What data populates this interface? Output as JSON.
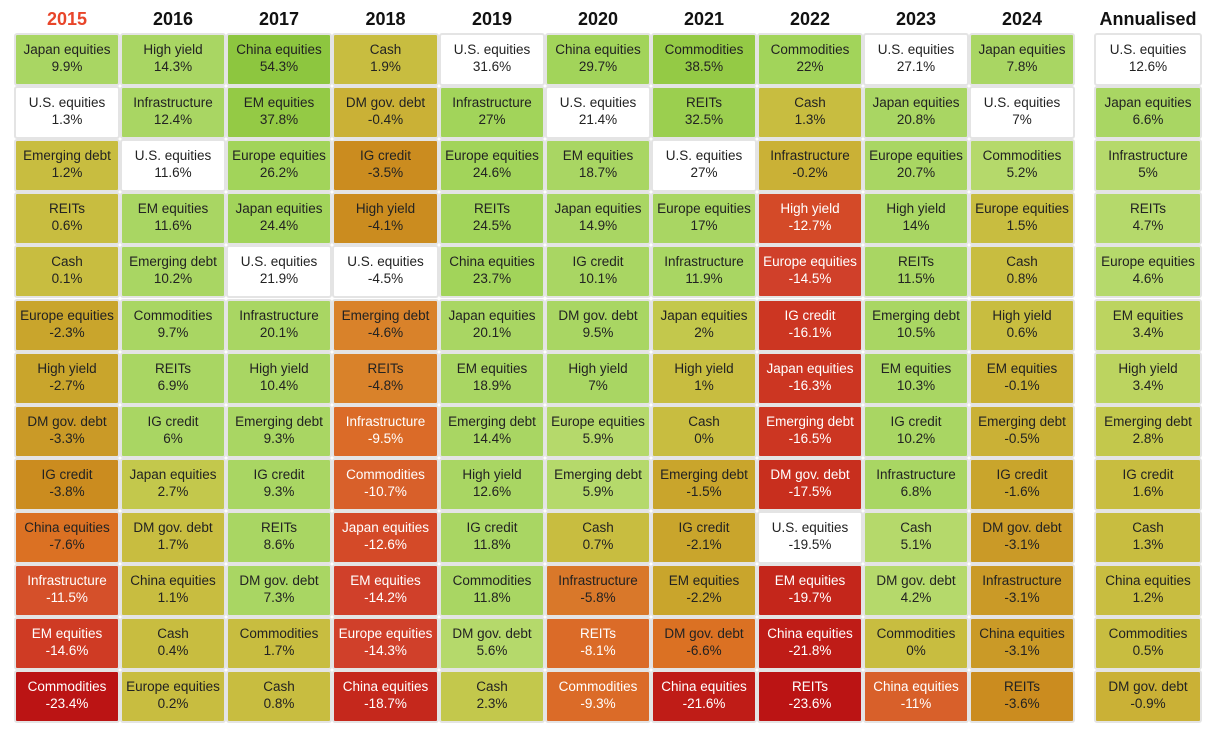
{
  "columns": [
    {
      "year": "2015",
      "active": true,
      "cells": [
        {
          "asset": "Japan equities",
          "value": "9.9%",
          "color": "#a9d663"
        },
        {
          "asset": "U.S. equities",
          "value": "1.3%",
          "color": "#ffffff"
        },
        {
          "asset": "Emerging debt",
          "value": "1.2%",
          "color": "#c8bd40"
        },
        {
          "asset": "REITs",
          "value": "0.6%",
          "color": "#c8bd40"
        },
        {
          "asset": "Cash",
          "value": "0.1%",
          "color": "#c8bd40"
        },
        {
          "asset": "Europe equities",
          "value": "-2.3%",
          "color": "#c9a52c"
        },
        {
          "asset": "High yield",
          "value": "-2.7%",
          "color": "#c9a52c"
        },
        {
          "asset": "DM gov. debt",
          "value": "-3.3%",
          "color": "#ca9a27"
        },
        {
          "asset": "IG credit",
          "value": "-3.8%",
          "color": "#cb8c1f"
        },
        {
          "asset": "China equities",
          "value": "-7.6%",
          "color": "#db7123"
        },
        {
          "asset": "Infrastructure",
          "value": "-11.5%",
          "color": "#d5502a"
        },
        {
          "asset": "EM equities",
          "value": "-14.6%",
          "color": "#cf3b24"
        },
        {
          "asset": "Commodities",
          "value": "-23.4%",
          "color": "#bb1414"
        }
      ]
    },
    {
      "year": "2016",
      "active": false,
      "cells": [
        {
          "asset": "High yield",
          "value": "14.3%",
          "color": "#a9d663"
        },
        {
          "asset": "Infrastructure",
          "value": "12.4%",
          "color": "#a9d663"
        },
        {
          "asset": "U.S. equities",
          "value": "11.6%",
          "color": "#ffffff"
        },
        {
          "asset": "EM equities",
          "value": "11.6%",
          "color": "#a9d663"
        },
        {
          "asset": "Emerging debt",
          "value": "10.2%",
          "color": "#a9d663"
        },
        {
          "asset": "Commodities",
          "value": "9.7%",
          "color": "#a9d663"
        },
        {
          "asset": "REITs",
          "value": "6.9%",
          "color": "#a9d663"
        },
        {
          "asset": "IG credit",
          "value": "6%",
          "color": "#a9d663"
        },
        {
          "asset": "Japan equities",
          "value": "2.7%",
          "color": "#c3c84c"
        },
        {
          "asset": "DM gov. debt",
          "value": "1.7%",
          "color": "#c8bd40"
        },
        {
          "asset": "China equities",
          "value": "1.1%",
          "color": "#c8bd40"
        },
        {
          "asset": "Cash",
          "value": "0.4%",
          "color": "#c8bd40"
        },
        {
          "asset": "Europe equities",
          "value": "0.2%",
          "color": "#c8bd40"
        }
      ]
    },
    {
      "year": "2017",
      "active": false,
      "cells": [
        {
          "asset": "China equities",
          "value": "54.3%",
          "color": "#8dc63f"
        },
        {
          "asset": "EM equities",
          "value": "37.8%",
          "color": "#94ca45"
        },
        {
          "asset": "Europe equities",
          "value": "26.2%",
          "color": "#a2d45a"
        },
        {
          "asset": "Japan equities",
          "value": "24.4%",
          "color": "#a2d45a"
        },
        {
          "asset": "U.S. equities",
          "value": "21.9%",
          "color": "#ffffff"
        },
        {
          "asset": "Infrastructure",
          "value": "20.1%",
          "color": "#a9d663"
        },
        {
          "asset": "High yield",
          "value": "10.4%",
          "color": "#a9d663"
        },
        {
          "asset": "Emerging debt",
          "value": "9.3%",
          "color": "#a9d663"
        },
        {
          "asset": "IG credit",
          "value": "9.3%",
          "color": "#a9d663"
        },
        {
          "asset": "REITs",
          "value": "8.6%",
          "color": "#a9d663"
        },
        {
          "asset": "DM gov. debt",
          "value": "7.3%",
          "color": "#a9d663"
        },
        {
          "asset": "Commodities",
          "value": "1.7%",
          "color": "#c8bd40"
        },
        {
          "asset": "Cash",
          "value": "0.8%",
          "color": "#c8bd40"
        }
      ]
    },
    {
      "year": "2018",
      "active": false,
      "cells": [
        {
          "asset": "Cash",
          "value": "1.9%",
          "color": "#c8bd40"
        },
        {
          "asset": "DM gov. debt",
          "value": "-0.4%",
          "color": "#cab136"
        },
        {
          "asset": "IG credit",
          "value": "-3.5%",
          "color": "#cb8c1f"
        },
        {
          "asset": "High yield",
          "value": "-4.1%",
          "color": "#cb8c1f"
        },
        {
          "asset": "U.S. equities",
          "value": "-4.5%",
          "color": "#ffffff"
        },
        {
          "asset": "Emerging debt",
          "value": "-4.6%",
          "color": "#d9822a"
        },
        {
          "asset": "REITs",
          "value": "-4.8%",
          "color": "#d9822a"
        },
        {
          "asset": "Infrastructure",
          "value": "-9.5%",
          "color": "#db6b28"
        },
        {
          "asset": "Commodities",
          "value": "-10.7%",
          "color": "#d8602a"
        },
        {
          "asset": "Japan equities",
          "value": "-12.6%",
          "color": "#d44a28"
        },
        {
          "asset": "EM equities",
          "value": "-14.2%",
          "color": "#d0402a"
        },
        {
          "asset": "Europe equities",
          "value": "-14.3%",
          "color": "#d0402a"
        },
        {
          "asset": "China equities",
          "value": "-18.7%",
          "color": "#c5281c"
        }
      ]
    },
    {
      "year": "2019",
      "active": false,
      "cells": [
        {
          "asset": "U.S. equities",
          "value": "31.6%",
          "color": "#ffffff"
        },
        {
          "asset": "Infrastructure",
          "value": "27%",
          "color": "#a2d45a"
        },
        {
          "asset": "Europe equities",
          "value": "24.6%",
          "color": "#a2d45a"
        },
        {
          "asset": "REITs",
          "value": "24.5%",
          "color": "#a2d45a"
        },
        {
          "asset": "China equities",
          "value": "23.7%",
          "color": "#a2d45a"
        },
        {
          "asset": "Japan equities",
          "value": "20.1%",
          "color": "#a9d663"
        },
        {
          "asset": "EM equities",
          "value": "18.9%",
          "color": "#a9d663"
        },
        {
          "asset": "Emerging debt",
          "value": "14.4%",
          "color": "#a9d663"
        },
        {
          "asset": "High yield",
          "value": "12.6%",
          "color": "#a9d663"
        },
        {
          "asset": "IG credit",
          "value": "11.8%",
          "color": "#a9d663"
        },
        {
          "asset": "Commodities",
          "value": "11.8%",
          "color": "#a9d663"
        },
        {
          "asset": "DM gov. debt",
          "value": "5.6%",
          "color": "#b5d96b"
        },
        {
          "asset": "Cash",
          "value": "2.3%",
          "color": "#c3c84c"
        }
      ]
    },
    {
      "year": "2020",
      "active": false,
      "cells": [
        {
          "asset": "China equities",
          "value": "29.7%",
          "color": "#a2d45a"
        },
        {
          "asset": "U.S. equities",
          "value": "21.4%",
          "color": "#ffffff"
        },
        {
          "asset": "EM equities",
          "value": "18.7%",
          "color": "#a9d663"
        },
        {
          "asset": "Japan equities",
          "value": "14.9%",
          "color": "#a9d663"
        },
        {
          "asset": "IG credit",
          "value": "10.1%",
          "color": "#a9d663"
        },
        {
          "asset": "DM gov. debt",
          "value": "9.5%",
          "color": "#a9d663"
        },
        {
          "asset": "High yield",
          "value": "7%",
          "color": "#a9d663"
        },
        {
          "asset": "Europe equities",
          "value": "5.9%",
          "color": "#b5d96b"
        },
        {
          "asset": "Emerging debt",
          "value": "5.9%",
          "color": "#b5d96b"
        },
        {
          "asset": "Cash",
          "value": "0.7%",
          "color": "#c8bd40"
        },
        {
          "asset": "Infrastructure",
          "value": "-5.8%",
          "color": "#d9782a"
        },
        {
          "asset": "REITs",
          "value": "-8.1%",
          "color": "#db6b28"
        },
        {
          "asset": "Commodities",
          "value": "-9.3%",
          "color": "#db6b28"
        }
      ]
    },
    {
      "year": "2021",
      "active": false,
      "cells": [
        {
          "asset": "Commodities",
          "value": "38.5%",
          "color": "#94ca45"
        },
        {
          "asset": "REITs",
          "value": "32.5%",
          "color": "#9bcf4f"
        },
        {
          "asset": "U.S. equities",
          "value": "27%",
          "color": "#ffffff"
        },
        {
          "asset": "Europe equities",
          "value": "17%",
          "color": "#a9d663"
        },
        {
          "asset": "Infrastructure",
          "value": "11.9%",
          "color": "#a9d663"
        },
        {
          "asset": "Japan equities",
          "value": "2%",
          "color": "#c3c84c"
        },
        {
          "asset": "High yield",
          "value": "1%",
          "color": "#c8bd40"
        },
        {
          "asset": "Cash",
          "value": "0%",
          "color": "#c8bd40"
        },
        {
          "asset": "Emerging debt",
          "value": "-1.5%",
          "color": "#c9a52c"
        },
        {
          "asset": "IG credit",
          "value": "-2.1%",
          "color": "#c9a52c"
        },
        {
          "asset": "EM equities",
          "value": "-2.2%",
          "color": "#c9a52c"
        },
        {
          "asset": "DM gov. debt",
          "value": "-6.6%",
          "color": "#db7123"
        },
        {
          "asset": "China equities",
          "value": "-21.6%",
          "color": "#bf1c17"
        }
      ]
    },
    {
      "year": "2022",
      "active": false,
      "cells": [
        {
          "asset": "Commodities",
          "value": "22%",
          "color": "#a2d45a"
        },
        {
          "asset": "Cash",
          "value": "1.3%",
          "color": "#c8bd40"
        },
        {
          "asset": "Infrastructure",
          "value": "-0.2%",
          "color": "#cab136"
        },
        {
          "asset": "High yield",
          "value": "-12.7%",
          "color": "#d44a28"
        },
        {
          "asset": "Europe equities",
          "value": "-14.5%",
          "color": "#d0402a"
        },
        {
          "asset": "IG credit",
          "value": "-16.1%",
          "color": "#cc3622"
        },
        {
          "asset": "Japan equities",
          "value": "-16.3%",
          "color": "#cc3622"
        },
        {
          "asset": "Emerging debt",
          "value": "-16.5%",
          "color": "#cc3622"
        },
        {
          "asset": "DM gov. debt",
          "value": "-17.5%",
          "color": "#c82f1e"
        },
        {
          "asset": "U.S. equities",
          "value": "-19.5%",
          "color": "#ffffff"
        },
        {
          "asset": "EM equities",
          "value": "-19.7%",
          "color": "#c4261b"
        },
        {
          "asset": "China equities",
          "value": "-21.8%",
          "color": "#bf1c17"
        },
        {
          "asset": "REITs",
          "value": "-23.6%",
          "color": "#bb1414"
        }
      ]
    },
    {
      "year": "2023",
      "active": false,
      "cells": [
        {
          "asset": "U.S. equities",
          "value": "27.1%",
          "color": "#ffffff"
        },
        {
          "asset": "Japan equities",
          "value": "20.8%",
          "color": "#a9d663"
        },
        {
          "asset": "Europe equities",
          "value": "20.7%",
          "color": "#a9d663"
        },
        {
          "asset": "High yield",
          "value": "14%",
          "color": "#a9d663"
        },
        {
          "asset": "REITs",
          "value": "11.5%",
          "color": "#a9d663"
        },
        {
          "asset": "Emerging debt",
          "value": "10.5%",
          "color": "#a9d663"
        },
        {
          "asset": "EM equities",
          "value": "10.3%",
          "color": "#a9d663"
        },
        {
          "asset": "IG credit",
          "value": "10.2%",
          "color": "#a9d663"
        },
        {
          "asset": "Infrastructure",
          "value": "6.8%",
          "color": "#a9d663"
        },
        {
          "asset": "Cash",
          "value": "5.1%",
          "color": "#b5d96b"
        },
        {
          "asset": "DM gov. debt",
          "value": "4.2%",
          "color": "#b5d96b"
        },
        {
          "asset": "Commodities",
          "value": "0%",
          "color": "#c8bd40"
        },
        {
          "asset": "China equities",
          "value": "-11%",
          "color": "#d8602a"
        }
      ]
    },
    {
      "year": "2024",
      "active": false,
      "cells": [
        {
          "asset": "Japan equities",
          "value": "7.8%",
          "color": "#a9d663"
        },
        {
          "asset": "U.S. equities",
          "value": "7%",
          "color": "#ffffff"
        },
        {
          "asset": "Commodities",
          "value": "5.2%",
          "color": "#b5d96b"
        },
        {
          "asset": "Europe equities",
          "value": "1.5%",
          "color": "#c8bd40"
        },
        {
          "asset": "Cash",
          "value": "0.8%",
          "color": "#c8bd40"
        },
        {
          "asset": "High yield",
          "value": "0.6%",
          "color": "#c8bd40"
        },
        {
          "asset": "EM equities",
          "value": "-0.1%",
          "color": "#cab136"
        },
        {
          "asset": "Emerging debt",
          "value": "-0.5%",
          "color": "#cab136"
        },
        {
          "asset": "IG credit",
          "value": "-1.6%",
          "color": "#c9a52c"
        },
        {
          "asset": "DM gov. debt",
          "value": "-3.1%",
          "color": "#ca9a27"
        },
        {
          "asset": "Infrastructure",
          "value": "-3.1%",
          "color": "#ca9a27"
        },
        {
          "asset": "China equities",
          "value": "-3.1%",
          "color": "#ca9a27"
        },
        {
          "asset": "REITs",
          "value": "-3.6%",
          "color": "#cb8c1f"
        }
      ]
    },
    {
      "year": "Annualised",
      "active": false,
      "cells": [
        {
          "asset": "U.S. equities",
          "value": "12.6%",
          "color": "#ffffff"
        },
        {
          "asset": "Japan equities",
          "value": "6.6%",
          "color": "#a9d663"
        },
        {
          "asset": "Infrastructure",
          "value": "5%",
          "color": "#b5d96b"
        },
        {
          "asset": "REITs",
          "value": "4.7%",
          "color": "#b5d96b"
        },
        {
          "asset": "Europe equities",
          "value": "4.6%",
          "color": "#b5d96b"
        },
        {
          "asset": "EM equities",
          "value": "3.4%",
          "color": "#bcd460"
        },
        {
          "asset": "High yield",
          "value": "3.4%",
          "color": "#bcd460"
        },
        {
          "asset": "Emerging debt",
          "value": "2.8%",
          "color": "#c3c84c"
        },
        {
          "asset": "IG credit",
          "value": "1.6%",
          "color": "#c8bd40"
        },
        {
          "asset": "Cash",
          "value": "1.3%",
          "color": "#c8bd40"
        },
        {
          "asset": "China equities",
          "value": "1.2%",
          "color": "#c8bd40"
        },
        {
          "asset": "Commodities",
          "value": "0.5%",
          "color": "#c8bd40"
        },
        {
          "asset": "DM gov. debt",
          "value": "-0.9%",
          "color": "#cab136"
        }
      ]
    }
  ]
}
